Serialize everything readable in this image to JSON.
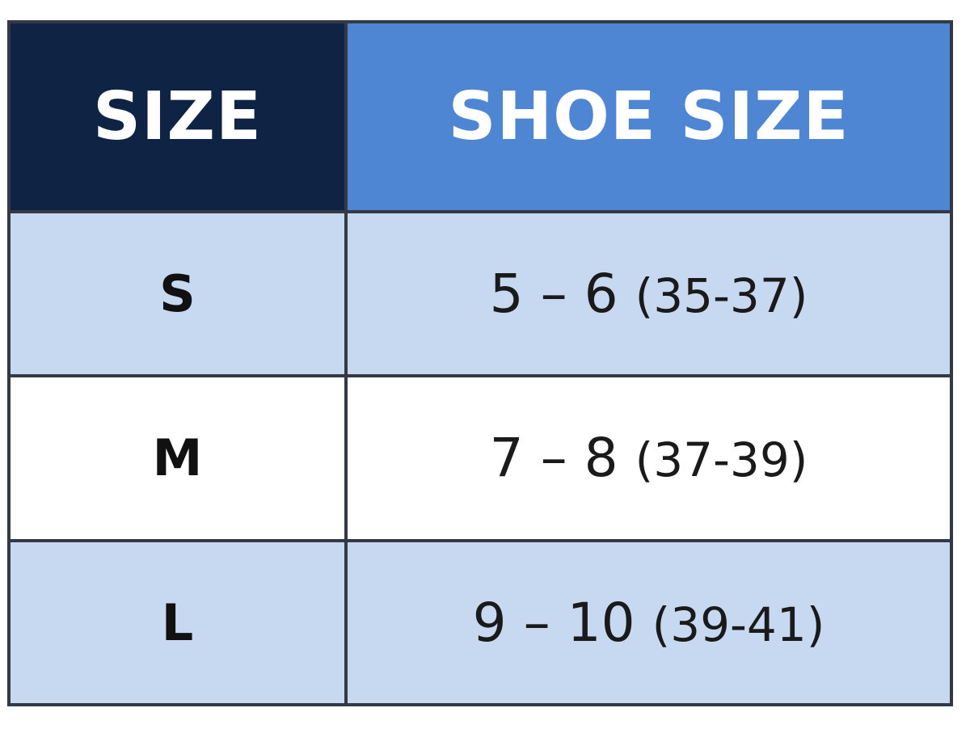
{
  "table": {
    "headers": [
      "SIZE",
      "SHOE SIZE"
    ],
    "colors": {
      "header_size": "#0f2444",
      "header_shoe": "#4f86d3",
      "row_shade": "#c7d9f1",
      "row_plain": "#ffffff"
    },
    "rows": [
      {
        "size": "S",
        "us": "5 – 6",
        "eu": "(35-37)"
      },
      {
        "size": "M",
        "us": "7 – 8",
        "eu": "(37-39)"
      },
      {
        "size": "L",
        "us": "9 – 10",
        "eu": "(39-41)"
      }
    ]
  }
}
